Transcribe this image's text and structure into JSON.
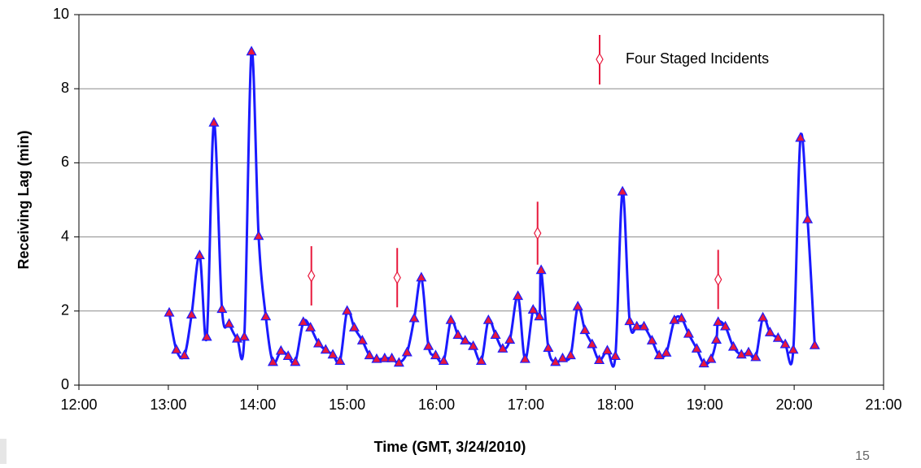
{
  "chart_data": {
    "type": "line",
    "xlabel": "Time (GMT, 3/24/2010)",
    "ylabel": "Receiving Lag (min)",
    "xlim": [
      12,
      21
    ],
    "xticks": [
      {
        "value": 12,
        "label": "12:00"
      },
      {
        "value": 13,
        "label": "13:00"
      },
      {
        "value": 14,
        "label": "14:00"
      },
      {
        "value": 15,
        "label": "15:00"
      },
      {
        "value": 16,
        "label": "16:00"
      },
      {
        "value": 17,
        "label": "17:00"
      },
      {
        "value": 18,
        "label": "18:00"
      },
      {
        "value": 19,
        "label": "19:00"
      },
      {
        "value": 20,
        "label": "20:00"
      },
      {
        "value": 21,
        "label": "21:00"
      }
    ],
    "ylim": [
      0,
      10
    ],
    "yticks": [
      0,
      2,
      4,
      6,
      8,
      10
    ],
    "grid": true,
    "legend": "upper right",
    "series": [
      {
        "color": "#1a1aff",
        "marker_color": "#e8183c",
        "x": [
          13.01,
          13.09,
          13.18,
          13.26,
          13.35,
          13.43,
          13.51,
          13.6,
          13.68,
          13.77,
          13.85,
          13.93,
          14.01,
          14.09,
          14.17,
          14.26,
          14.34,
          14.42,
          14.51,
          14.59,
          14.68,
          14.76,
          14.84,
          14.92,
          15.0,
          15.08,
          15.17,
          15.25,
          15.33,
          15.42,
          15.5,
          15.58,
          15.67,
          15.75,
          15.83,
          15.91,
          15.99,
          16.08,
          16.16,
          16.24,
          16.32,
          16.41,
          16.5,
          16.58,
          16.66,
          16.74,
          16.82,
          16.91,
          16.99,
          17.08,
          17.15,
          17.17,
          17.25,
          17.33,
          17.41,
          17.5,
          17.58,
          17.66,
          17.74,
          17.82,
          17.91,
          18.0,
          18.08,
          18.16,
          18.24,
          18.32,
          18.41,
          18.49,
          18.57,
          18.66,
          18.74,
          18.82,
          18.91,
          18.99,
          19.07,
          19.13,
          19.15,
          19.23,
          19.32,
          19.41,
          19.49,
          19.57,
          19.65,
          19.73,
          19.82,
          19.9,
          19.99,
          20.07,
          20.15,
          20.23
        ],
        "values": [
          1.95,
          0.95,
          0.8,
          1.9,
          3.5,
          1.3,
          7.08,
          2.05,
          1.65,
          1.25,
          1.3,
          9.0,
          4.02,
          1.85,
          0.62,
          0.92,
          0.78,
          0.62,
          1.7,
          1.55,
          1.12,
          0.95,
          0.82,
          0.65,
          2.0,
          1.55,
          1.2,
          0.8,
          0.7,
          0.72,
          0.72,
          0.6,
          0.88,
          1.8,
          2.9,
          1.05,
          0.8,
          0.65,
          1.75,
          1.35,
          1.2,
          1.05,
          0.65,
          1.75,
          1.35,
          0.98,
          1.22,
          2.4,
          0.7,
          2.03,
          1.85,
          3.1,
          1.0,
          0.62,
          0.72,
          0.8,
          2.12,
          1.48,
          1.1,
          0.67,
          0.93,
          0.78,
          5.22,
          1.72,
          1.58,
          1.58,
          1.2,
          0.8,
          0.87,
          1.75,
          1.8,
          1.38,
          0.98,
          0.58,
          0.7,
          1.22,
          1.7,
          1.58,
          1.03,
          0.82,
          0.88,
          0.75,
          1.82,
          1.42,
          1.27,
          1.1,
          0.95,
          6.67,
          4.47,
          1.07
        ]
      },
      {
        "name": "Four Staged Incidents",
        "type": "errorbar",
        "color": "#e8183c",
        "x": [
          14.6,
          15.56,
          17.13,
          19.15
        ],
        "values": [
          2.95,
          2.9,
          4.1,
          2.85
        ],
        "error": [
          0.8,
          0.8,
          0.85,
          0.8
        ]
      }
    ]
  },
  "slide_number": "15"
}
